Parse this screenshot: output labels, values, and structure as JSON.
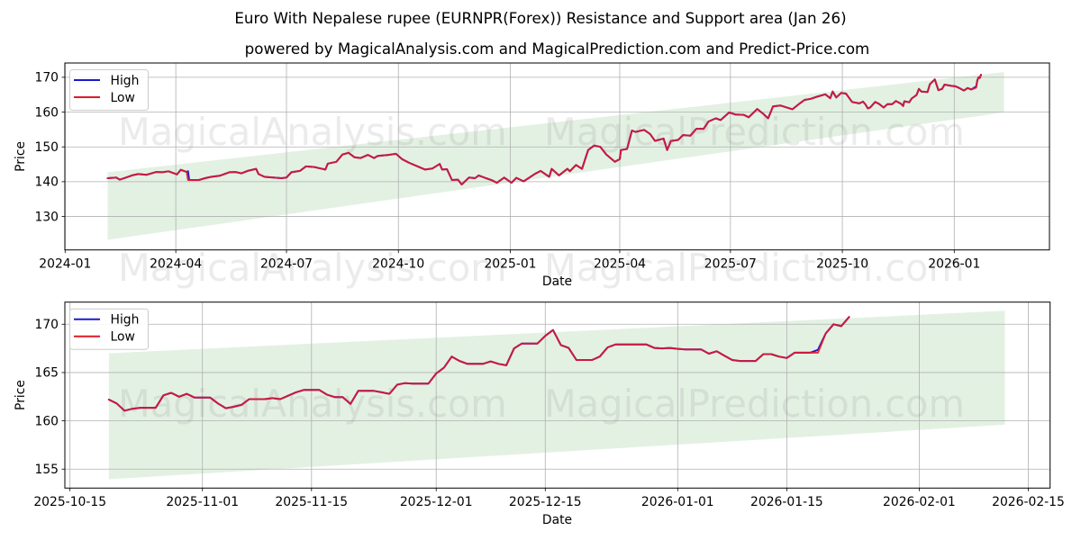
{
  "chart_data": [
    {
      "type": "line",
      "title": "Euro With Nepalese rupee (EURNPR(Forex)) Resistance and Support area (Jan 26)",
      "subtitle": "powered by MagicalAnalysis.com and MagicalPrediction.com and Predict-Price.com",
      "xlabel": "Date",
      "ylabel": "Price",
      "xlim": [
        "2023-12-31T19:00",
        "2026-03-20T07:00"
      ],
      "ylim": [
        120.4,
        174.1
      ],
      "grid": true,
      "yticks": [
        130,
        140,
        150,
        160,
        170
      ],
      "xticks": [
        {
          "label": "2024-01",
          "date": "2024-01-01"
        },
        {
          "label": "2024-04",
          "date": "2024-04-01"
        },
        {
          "label": "2024-07",
          "date": "2024-07-01"
        },
        {
          "label": "2024-10",
          "date": "2024-10-01"
        },
        {
          "label": "2025-01",
          "date": "2025-01-01"
        },
        {
          "label": "2025-04",
          "date": "2025-04-01"
        },
        {
          "label": "2025-07",
          "date": "2025-07-01"
        },
        {
          "label": "2025-10",
          "date": "2025-10-01"
        },
        {
          "label": "2026-01",
          "date": "2026-01-01"
        }
      ],
      "legend": {
        "position": "upper left",
        "entries": [
          {
            "label": "High",
            "color": "#1a1ad0"
          },
          {
            "label": "Low",
            "color": "#e01a2a"
          }
        ]
      },
      "band": {
        "start": {
          "date": "2024-02-05",
          "top": 142.7,
          "bottom": 123.3
        },
        "end": {
          "date": "2026-02-11",
          "top": 171.5,
          "bottom": 159.9
        },
        "color": "#008000",
        "alpha": 0.11
      },
      "x": [
        "2024-02-05",
        "2024-02-12",
        "2024-02-15",
        "2024-02-20",
        "2024-02-25",
        "2024-03-01",
        "2024-03-08",
        "2024-03-16",
        "2024-03-21",
        "2024-03-26",
        "2024-04-02",
        "2024-04-05",
        "2024-04-10",
        "2024-04-11",
        "2024-04-12",
        "2024-04-20",
        "2024-04-25",
        "2024-04-30",
        "2024-05-07",
        "2024-05-15",
        "2024-05-20",
        "2024-05-25",
        "2024-05-30",
        "2024-06-06",
        "2024-06-08",
        "2024-06-13",
        "2024-06-20",
        "2024-06-27",
        "2024-07-01",
        "2024-07-05",
        "2024-07-12",
        "2024-07-17",
        "2024-07-24",
        "2024-07-29",
        "2024-08-02",
        "2024-08-04",
        "2024-08-11",
        "2024-08-16",
        "2024-08-21",
        "2024-08-26",
        "2024-08-31",
        "2024-09-06",
        "2024-09-11",
        "2024-09-14",
        "2024-09-23",
        "2024-09-29",
        "2024-10-04",
        "2024-10-10",
        "2024-10-18",
        "2024-10-23",
        "2024-10-29",
        "2024-11-04",
        "2024-11-06",
        "2024-11-10",
        "2024-11-14",
        "2024-11-19",
        "2024-11-22",
        "2024-11-28",
        "2024-12-03",
        "2024-12-06",
        "2024-12-12",
        "2024-12-17",
        "2024-12-21",
        "2024-12-27",
        "2025-01-02",
        "2025-01-06",
        "2025-01-12",
        "2025-01-21",
        "2025-01-26",
        "2025-02-02",
        "2025-02-04",
        "2025-02-10",
        "2025-02-17",
        "2025-02-19",
        "2025-02-24",
        "2025-03-01",
        "2025-03-06",
        "2025-03-11",
        "2025-03-16",
        "2025-03-21",
        "2025-03-28",
        "2025-04-01",
        "2025-04-02",
        "2025-04-07",
        "2025-04-11",
        "2025-04-14",
        "2025-04-21",
        "2025-04-26",
        "2025-04-30",
        "2025-05-07",
        "2025-05-10",
        "2025-05-13",
        "2025-05-19",
        "2025-05-23",
        "2025-05-29",
        "2025-06-03",
        "2025-06-09",
        "2025-06-13",
        "2025-06-19",
        "2025-06-23",
        "2025-06-30",
        "2025-07-05",
        "2025-07-12",
        "2025-07-16",
        "2025-07-23",
        "2025-07-28",
        "2025-08-01",
        "2025-08-05",
        "2025-08-11",
        "2025-08-21",
        "2025-08-27",
        "2025-08-31",
        "2025-09-05",
        "2025-09-10",
        "2025-09-17",
        "2025-09-21",
        "2025-09-23",
        "2025-09-26",
        "2025-09-30",
        "2025-10-04",
        "2025-10-09",
        "2025-10-15",
        "2025-10-18",
        "2025-10-20",
        "2025-10-22",
        "2025-10-24",
        "2025-10-28",
        "2025-10-31",
        "2025-11-04",
        "2025-11-07",
        "2025-11-11",
        "2025-11-14",
        "2025-11-18",
        "2025-11-20",
        "2025-11-21",
        "2025-11-25",
        "2025-11-27",
        "2025-12-01",
        "2025-12-03",
        "2025-12-05",
        "2025-12-10",
        "2025-12-12",
        "2025-12-16",
        "2025-12-19",
        "2025-12-22",
        "2025-12-24",
        "2025-12-30",
        "2026-01-02",
        "2026-01-05",
        "2026-01-09",
        "2026-01-12",
        "2026-01-15",
        "2026-01-19",
        "2026-01-20",
        "2026-01-21",
        "2026-01-22",
        "2026-01-23"
      ],
      "series": [
        {
          "name": "High",
          "color": "#1a1ad0",
          "values": [
            141.0,
            141.2,
            140.6,
            141.2,
            141.8,
            142.2,
            142.0,
            142.8,
            142.7,
            143.0,
            142.1,
            143.4,
            142.8,
            143.0,
            140.5,
            140.5,
            141.0,
            141.4,
            141.7,
            142.7,
            142.8,
            142.4,
            143.1,
            143.7,
            142.2,
            141.4,
            141.2,
            141.0,
            141.2,
            142.7,
            143.1,
            144.4,
            144.2,
            143.8,
            143.5,
            145.2,
            145.7,
            147.8,
            148.3,
            147.0,
            146.8,
            147.7,
            146.8,
            147.4,
            147.7,
            148.0,
            146.5,
            145.4,
            144.2,
            143.5,
            143.8,
            145.1,
            143.5,
            143.6,
            140.5,
            140.6,
            139.2,
            141.2,
            141.0,
            141.8,
            141.0,
            140.4,
            139.7,
            141.2,
            139.7,
            141.1,
            140.1,
            142.2,
            143.1,
            141.4,
            143.7,
            141.8,
            143.7,
            143.0,
            144.8,
            143.7,
            149.1,
            150.4,
            150.0,
            147.8,
            145.7,
            146.5,
            149.1,
            149.4,
            154.7,
            154.3,
            154.9,
            153.7,
            151.7,
            152.4,
            149.1,
            151.7,
            152.0,
            153.4,
            153.2,
            155.2,
            155.2,
            157.3,
            158.2,
            157.7,
            159.9,
            159.3,
            159.2,
            158.5,
            160.9,
            159.5,
            158.2,
            161.6,
            161.9,
            160.8,
            162.5,
            163.5,
            163.8,
            164.4,
            165.1,
            164.0,
            165.9,
            164.2,
            165.5,
            165.3,
            162.9,
            162.5,
            163.0,
            162.2,
            161.05,
            161.35,
            162.9,
            162.4,
            161.3,
            162.25,
            162.25,
            163.2,
            162.45,
            161.75,
            163.1,
            162.8,
            163.9,
            164.9,
            166.65,
            165.9,
            165.75,
            168.0,
            169.4,
            166.3,
            166.65,
            167.9,
            167.5,
            167.4,
            166.95,
            166.2,
            166.9,
            166.5,
            167.35,
            169.05,
            170.0,
            169.8,
            170.75
          ]
        },
        {
          "name": "Low",
          "color": "#e01a2a",
          "values": [
            141.0,
            141.2,
            140.6,
            141.2,
            141.8,
            142.2,
            142.0,
            142.8,
            142.7,
            143.0,
            142.1,
            143.4,
            142.8,
            140.5,
            140.5,
            140.5,
            141.0,
            141.4,
            141.7,
            142.7,
            142.8,
            142.4,
            143.1,
            143.7,
            142.2,
            141.4,
            141.2,
            141.0,
            141.2,
            142.7,
            143.1,
            144.4,
            144.2,
            143.8,
            143.5,
            145.2,
            145.7,
            147.8,
            148.3,
            147.0,
            146.8,
            147.7,
            146.8,
            147.4,
            147.7,
            148.0,
            146.5,
            145.4,
            144.2,
            143.5,
            143.8,
            145.1,
            143.5,
            143.6,
            140.5,
            140.6,
            139.2,
            141.2,
            141.0,
            141.8,
            141.0,
            140.4,
            139.7,
            141.2,
            139.7,
            141.1,
            140.1,
            142.2,
            143.1,
            141.4,
            143.7,
            141.8,
            143.7,
            143.0,
            144.8,
            143.7,
            149.1,
            150.4,
            150.0,
            147.8,
            145.7,
            146.5,
            149.1,
            149.4,
            154.7,
            154.3,
            154.9,
            153.7,
            151.7,
            152.4,
            149.1,
            151.7,
            152.0,
            153.4,
            153.2,
            155.2,
            155.2,
            157.3,
            158.2,
            157.7,
            159.9,
            159.3,
            159.2,
            158.5,
            160.9,
            159.5,
            158.2,
            161.6,
            161.9,
            160.8,
            162.5,
            163.5,
            163.8,
            164.4,
            165.1,
            164.0,
            165.9,
            164.2,
            165.5,
            165.3,
            162.9,
            162.5,
            163.0,
            162.2,
            161.05,
            161.35,
            162.9,
            162.4,
            161.3,
            162.25,
            162.25,
            163.2,
            162.45,
            161.75,
            163.1,
            162.8,
            163.9,
            164.9,
            166.65,
            165.9,
            165.75,
            168.0,
            169.4,
            166.3,
            166.65,
            167.9,
            167.5,
            167.4,
            166.95,
            166.2,
            166.9,
            166.5,
            167.05,
            169.05,
            170.0,
            169.8,
            170.75
          ]
        }
      ]
    },
    {
      "type": "line",
      "title": "",
      "xlabel": "Date",
      "ylabel": "Price",
      "xlim": [
        "2025-10-14T08:10",
        "2026-02-17T19:10"
      ],
      "ylim": [
        153.04,
        172.29
      ],
      "grid": true,
      "yticks": [
        155,
        160,
        165,
        170
      ],
      "xticks": [
        {
          "label": "2025-10-15",
          "date": "2025-10-15"
        },
        {
          "label": "2025-11-01",
          "date": "2025-11-01"
        },
        {
          "label": "2025-11-15",
          "date": "2025-11-15"
        },
        {
          "label": "2025-12-01",
          "date": "2025-12-01"
        },
        {
          "label": "2025-12-15",
          "date": "2025-12-15"
        },
        {
          "label": "2026-01-01",
          "date": "2026-01-01"
        },
        {
          "label": "2026-01-15",
          "date": "2026-01-15"
        },
        {
          "label": "2026-02-01",
          "date": "2026-02-01"
        },
        {
          "label": "2026-02-15",
          "date": "2026-02-15"
        }
      ],
      "legend": {
        "position": "upper left",
        "entries": [
          {
            "label": "High",
            "color": "#1a1ad0"
          },
          {
            "label": "Low",
            "color": "#e01a2a"
          }
        ]
      },
      "band": {
        "start": {
          "date": "2025-10-20",
          "top": 167.0,
          "bottom": 153.95
        },
        "end": {
          "date": "2026-02-12",
          "top": 171.4,
          "bottom": 159.6
        },
        "color": "#008000",
        "alpha": 0.11
      },
      "x": [
        "2025-10-20",
        "2025-10-21",
        "2025-10-22",
        "2025-10-23",
        "2025-10-24",
        "2025-10-25",
        "2025-10-26",
        "2025-10-27",
        "2025-10-28",
        "2025-10-29",
        "2025-10-30",
        "2025-10-31",
        "2025-11-01",
        "2025-11-02",
        "2025-11-03",
        "2025-11-04",
        "2025-11-05",
        "2025-11-06",
        "2025-11-07",
        "2025-11-08",
        "2025-11-09",
        "2025-11-10",
        "2025-11-11",
        "2025-11-12",
        "2025-11-13",
        "2025-11-14",
        "2025-11-15",
        "2025-11-16",
        "2025-11-17",
        "2025-11-18",
        "2025-11-19",
        "2025-11-20",
        "2025-11-21",
        "2025-11-22",
        "2025-11-23",
        "2025-11-24",
        "2025-11-25",
        "2025-11-26",
        "2025-11-27",
        "2025-11-28",
        "2025-11-29",
        "2025-11-30",
        "2025-12-01",
        "2025-12-02",
        "2025-12-03",
        "2025-12-04",
        "2025-12-05",
        "2025-12-06",
        "2025-12-07",
        "2025-12-08",
        "2025-12-09",
        "2025-12-10",
        "2025-12-11",
        "2025-12-12",
        "2025-12-13",
        "2025-12-14",
        "2025-12-15",
        "2025-12-16",
        "2025-12-17",
        "2025-12-18",
        "2025-12-19",
        "2025-12-20",
        "2025-12-21",
        "2025-12-22",
        "2025-12-23",
        "2025-12-24",
        "2025-12-25",
        "2025-12-26",
        "2025-12-27",
        "2025-12-28",
        "2025-12-29",
        "2025-12-30",
        "2025-12-31",
        "2026-01-01",
        "2026-01-02",
        "2026-01-03",
        "2026-01-04",
        "2026-01-05",
        "2026-01-06",
        "2026-01-07",
        "2026-01-08",
        "2026-01-09",
        "2026-01-10",
        "2026-01-11",
        "2026-01-12",
        "2026-01-13",
        "2026-01-14",
        "2026-01-15",
        "2026-01-16",
        "2026-01-17",
        "2026-01-18",
        "2026-01-19",
        "2026-01-20",
        "2026-01-21",
        "2026-01-22",
        "2026-01-23"
      ],
      "series": [
        {
          "name": "High",
          "color": "#1a1ad0",
          "values": [
            162.2,
            161.8,
            161.05,
            161.25,
            161.35,
            161.35,
            161.35,
            162.65,
            162.9,
            162.5,
            162.8,
            162.4,
            162.4,
            162.4,
            161.8,
            161.3,
            161.45,
            161.65,
            162.25,
            162.25,
            162.25,
            162.35,
            162.25,
            162.6,
            162.95,
            163.2,
            163.2,
            163.2,
            162.7,
            162.45,
            162.45,
            161.75,
            163.1,
            163.1,
            163.1,
            162.95,
            162.8,
            163.75,
            163.9,
            163.85,
            163.85,
            163.85,
            164.9,
            165.5,
            166.65,
            166.2,
            165.9,
            165.9,
            165.9,
            166.15,
            165.9,
            165.75,
            167.5,
            168.0,
            168.0,
            168.0,
            168.8,
            169.4,
            167.85,
            167.55,
            166.3,
            166.3,
            166.3,
            166.65,
            167.6,
            167.9,
            167.9,
            167.9,
            167.9,
            167.9,
            167.55,
            167.5,
            167.55,
            167.45,
            167.4,
            167.4,
            167.4,
            166.95,
            167.2,
            166.75,
            166.3,
            166.2,
            166.2,
            166.2,
            166.9,
            166.9,
            166.65,
            166.5,
            167.05,
            167.05,
            167.05,
            167.35,
            169.05,
            170.0,
            169.8,
            170.75
          ]
        },
        {
          "name": "Low",
          "color": "#e01a2a",
          "values": [
            162.2,
            161.8,
            161.05,
            161.25,
            161.35,
            161.35,
            161.35,
            162.65,
            162.9,
            162.5,
            162.8,
            162.4,
            162.4,
            162.4,
            161.8,
            161.3,
            161.45,
            161.65,
            162.25,
            162.25,
            162.25,
            162.35,
            162.25,
            162.6,
            162.95,
            163.2,
            163.2,
            163.2,
            162.7,
            162.45,
            162.45,
            161.75,
            163.1,
            163.1,
            163.1,
            162.95,
            162.8,
            163.75,
            163.9,
            163.85,
            163.85,
            163.85,
            164.9,
            165.5,
            166.65,
            166.2,
            165.9,
            165.9,
            165.9,
            166.15,
            165.9,
            165.75,
            167.5,
            168.0,
            168.0,
            168.0,
            168.8,
            169.4,
            167.85,
            167.55,
            166.3,
            166.3,
            166.3,
            166.65,
            167.6,
            167.9,
            167.9,
            167.9,
            167.9,
            167.9,
            167.55,
            167.5,
            167.55,
            167.45,
            167.4,
            167.4,
            167.4,
            166.95,
            167.2,
            166.75,
            166.3,
            166.2,
            166.2,
            166.2,
            166.9,
            166.9,
            166.65,
            166.5,
            167.05,
            167.05,
            167.05,
            167.05,
            169.05,
            170.0,
            169.8,
            170.75
          ]
        }
      ]
    }
  ],
  "watermark": {
    "texts": [
      "MagicalAnalysis.com",
      "MagicalPrediction.com"
    ]
  }
}
